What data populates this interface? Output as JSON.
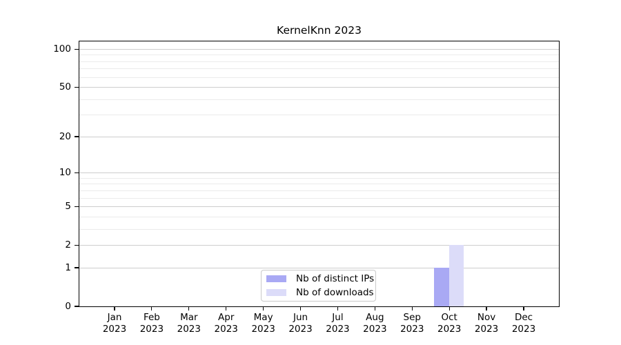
{
  "title": "KernelKnn 2023",
  "chart_data": {
    "type": "bar",
    "title": "KernelKnn 2023",
    "scale": "log1p",
    "grid": true,
    "ylim": [
      0,
      115
    ],
    "ylabel": "",
    "xlabel": "",
    "categories": [
      "Jan",
      "Feb",
      "Mar",
      "Apr",
      "May",
      "Jun",
      "Jul",
      "Aug",
      "Sep",
      "Oct",
      "Nov",
      "Dec"
    ],
    "x_year_label": "2023",
    "y_major_ticks": [
      0,
      1,
      2,
      5,
      10,
      20,
      50,
      100
    ],
    "y_minor_gridlines": [
      3,
      4,
      6,
      7,
      8,
      9,
      30,
      40,
      60,
      70,
      80,
      90
    ],
    "legend_position": "bottom-center",
    "series": [
      {
        "name": "Nb of distinct IPs",
        "color": "#a9a9f4",
        "values": [
          0,
          0,
          0,
          0,
          0,
          0,
          0,
          0,
          0,
          1,
          0,
          0
        ]
      },
      {
        "name": "Nb of downloads",
        "color": "#dcdcf9",
        "values": [
          0,
          0,
          0,
          0,
          0,
          0,
          0,
          0,
          0,
          2,
          0,
          0
        ]
      }
    ]
  },
  "colors": {
    "grid_major": "#cdcdcd",
    "grid_minor": "#ebebeb",
    "axis": "#000000",
    "legend_border": "#c9c9c9",
    "background": "#ffffff"
  }
}
